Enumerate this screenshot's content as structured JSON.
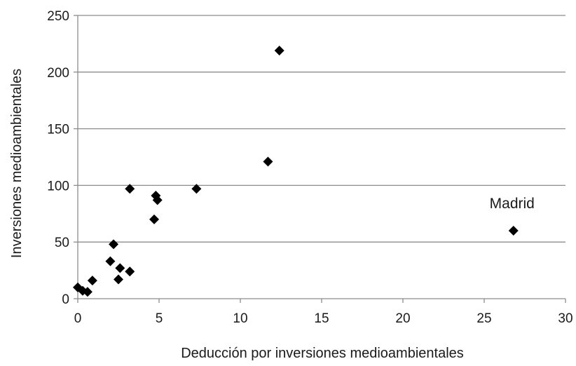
{
  "chart_data": {
    "type": "scatter",
    "title": "",
    "xlabel": "Deducción por inversiones medioambientales",
    "ylabel": "Inversiones medioambientales",
    "xlim": [
      0,
      30
    ],
    "ylim": [
      0,
      250
    ],
    "xticks": [
      0,
      5,
      10,
      15,
      20,
      25,
      30
    ],
    "yticks": [
      0,
      50,
      100,
      150,
      200,
      250
    ],
    "xtick_labels": [
      "0",
      "5",
      "10",
      "15",
      "20",
      "25",
      "30"
    ],
    "ytick_labels": [
      "0",
      "50",
      "100",
      "150",
      "200",
      "250"
    ],
    "grid": "horizontal",
    "legend": "none",
    "marker": "diamond",
    "marker_color": "#000000",
    "gridline_color": "#8c8c8c",
    "points": [
      {
        "x": 0.0,
        "y": 10
      },
      {
        "x": 0.3,
        "y": 7
      },
      {
        "x": 0.6,
        "y": 6
      },
      {
        "x": 0.9,
        "y": 16
      },
      {
        "x": 2.0,
        "y": 33
      },
      {
        "x": 2.2,
        "y": 48
      },
      {
        "x": 2.5,
        "y": 17
      },
      {
        "x": 2.6,
        "y": 27
      },
      {
        "x": 3.2,
        "y": 24
      },
      {
        "x": 3.2,
        "y": 97
      },
      {
        "x": 4.7,
        "y": 70
      },
      {
        "x": 4.8,
        "y": 91
      },
      {
        "x": 4.9,
        "y": 87
      },
      {
        "x": 7.3,
        "y": 97
      },
      {
        "x": 11.7,
        "y": 121
      },
      {
        "x": 12.4,
        "y": 219
      },
      {
        "x": 26.8,
        "y": 60
      }
    ],
    "annotations": [
      {
        "text": "Madrid",
        "x": 26.8,
        "y": 60
      }
    ]
  }
}
